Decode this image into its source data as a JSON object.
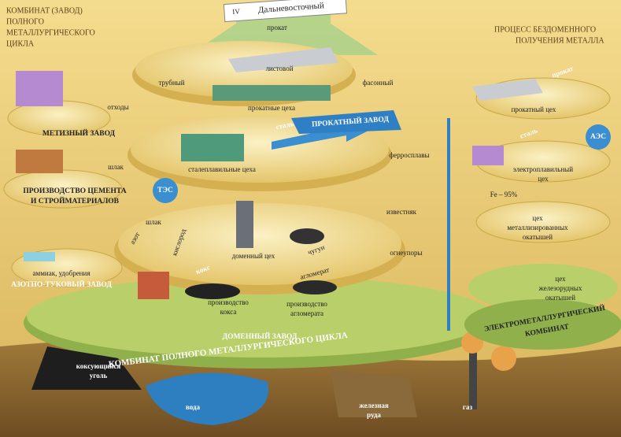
{
  "banner": {
    "number": "IV",
    "name": "Дальневосточный"
  },
  "left_title": [
    "КОМБИНАТ (ЗАВОД)",
    "ПОЛНОГО",
    "МЕТАЛЛУРГИЧЕСКОГО",
    "ЦИКЛА"
  ],
  "right_title": [
    "ПРОЦЕСС БЕЗДОМЕННОГО",
    "ПОЛУЧЕНИЯ МЕТАЛЛА"
  ],
  "rolling_plant": {
    "product": "прокат",
    "sheet": "листовой",
    "pipe": "трубный",
    "shaped": "фасонный",
    "shops": "прокатные цеха",
    "name": "ПРОКАТНЫЙ ЗАВОД"
  },
  "hardware_plant": {
    "input": "отходы",
    "name": "МЕТИЗНЫЙ ЗАВОД"
  },
  "steel": {
    "product": "сталь",
    "shops": "сталеплавильные цеха",
    "ferroalloys": "ферросплавы"
  },
  "cement": {
    "input": "шлак",
    "name": [
      "ПРОИЗВОДСТВО ЦЕМЕНТА",
      "И СТРОЙМАТЕРИАЛОВ"
    ]
  },
  "power_plant": "ТЭС",
  "blast_furnace": {
    "slag": "шлак",
    "nitrogen": "азот",
    "oxygen": "кислород",
    "limestone": "известняк",
    "refractories": "огнеупоры",
    "pig_iron": "чугун",
    "shop": "доменный цех",
    "coke": "кокс",
    "sinter": "агломерат",
    "coke_production": [
      "производство",
      "кокса"
    ],
    "sinter_production": [
      "производство",
      "агломерата"
    ],
    "name": "ДОМЕННЫЙ ЗАВОД"
  },
  "nitrogen_plant": {
    "product": "аммиак, удобрения",
    "name": "АЗОТНО-ТУКОВЫЙ ЗАВОД"
  },
  "combine_name": "КОМБИНАТ ПОЛНОГО МЕТАЛЛУРГИЧЕСКОГО ЦИКЛА",
  "resources": {
    "coal": [
      "коксующийся",
      "уголь"
    ],
    "water": "вода",
    "ore": [
      "железная",
      "руда"
    ],
    "gas": "газ"
  },
  "electro": {
    "product": "прокат",
    "rolling_shop": "прокатный цех",
    "steel": "сталь",
    "nuclear": "АЭС",
    "furnace_shop": [
      "электроплавильный",
      "цех"
    ],
    "iron_content": "Fe – 95%",
    "metallized_shop": [
      "цех",
      "металлизированных",
      "окатышей"
    ],
    "pellet_shop": [
      "цех",
      "железорудных",
      "окатышей"
    ],
    "name": [
      "ЭЛЕКТРОМЕТАЛЛУРГИЧЕСКИЙ",
      "КОМБИНАТ"
    ]
  }
}
